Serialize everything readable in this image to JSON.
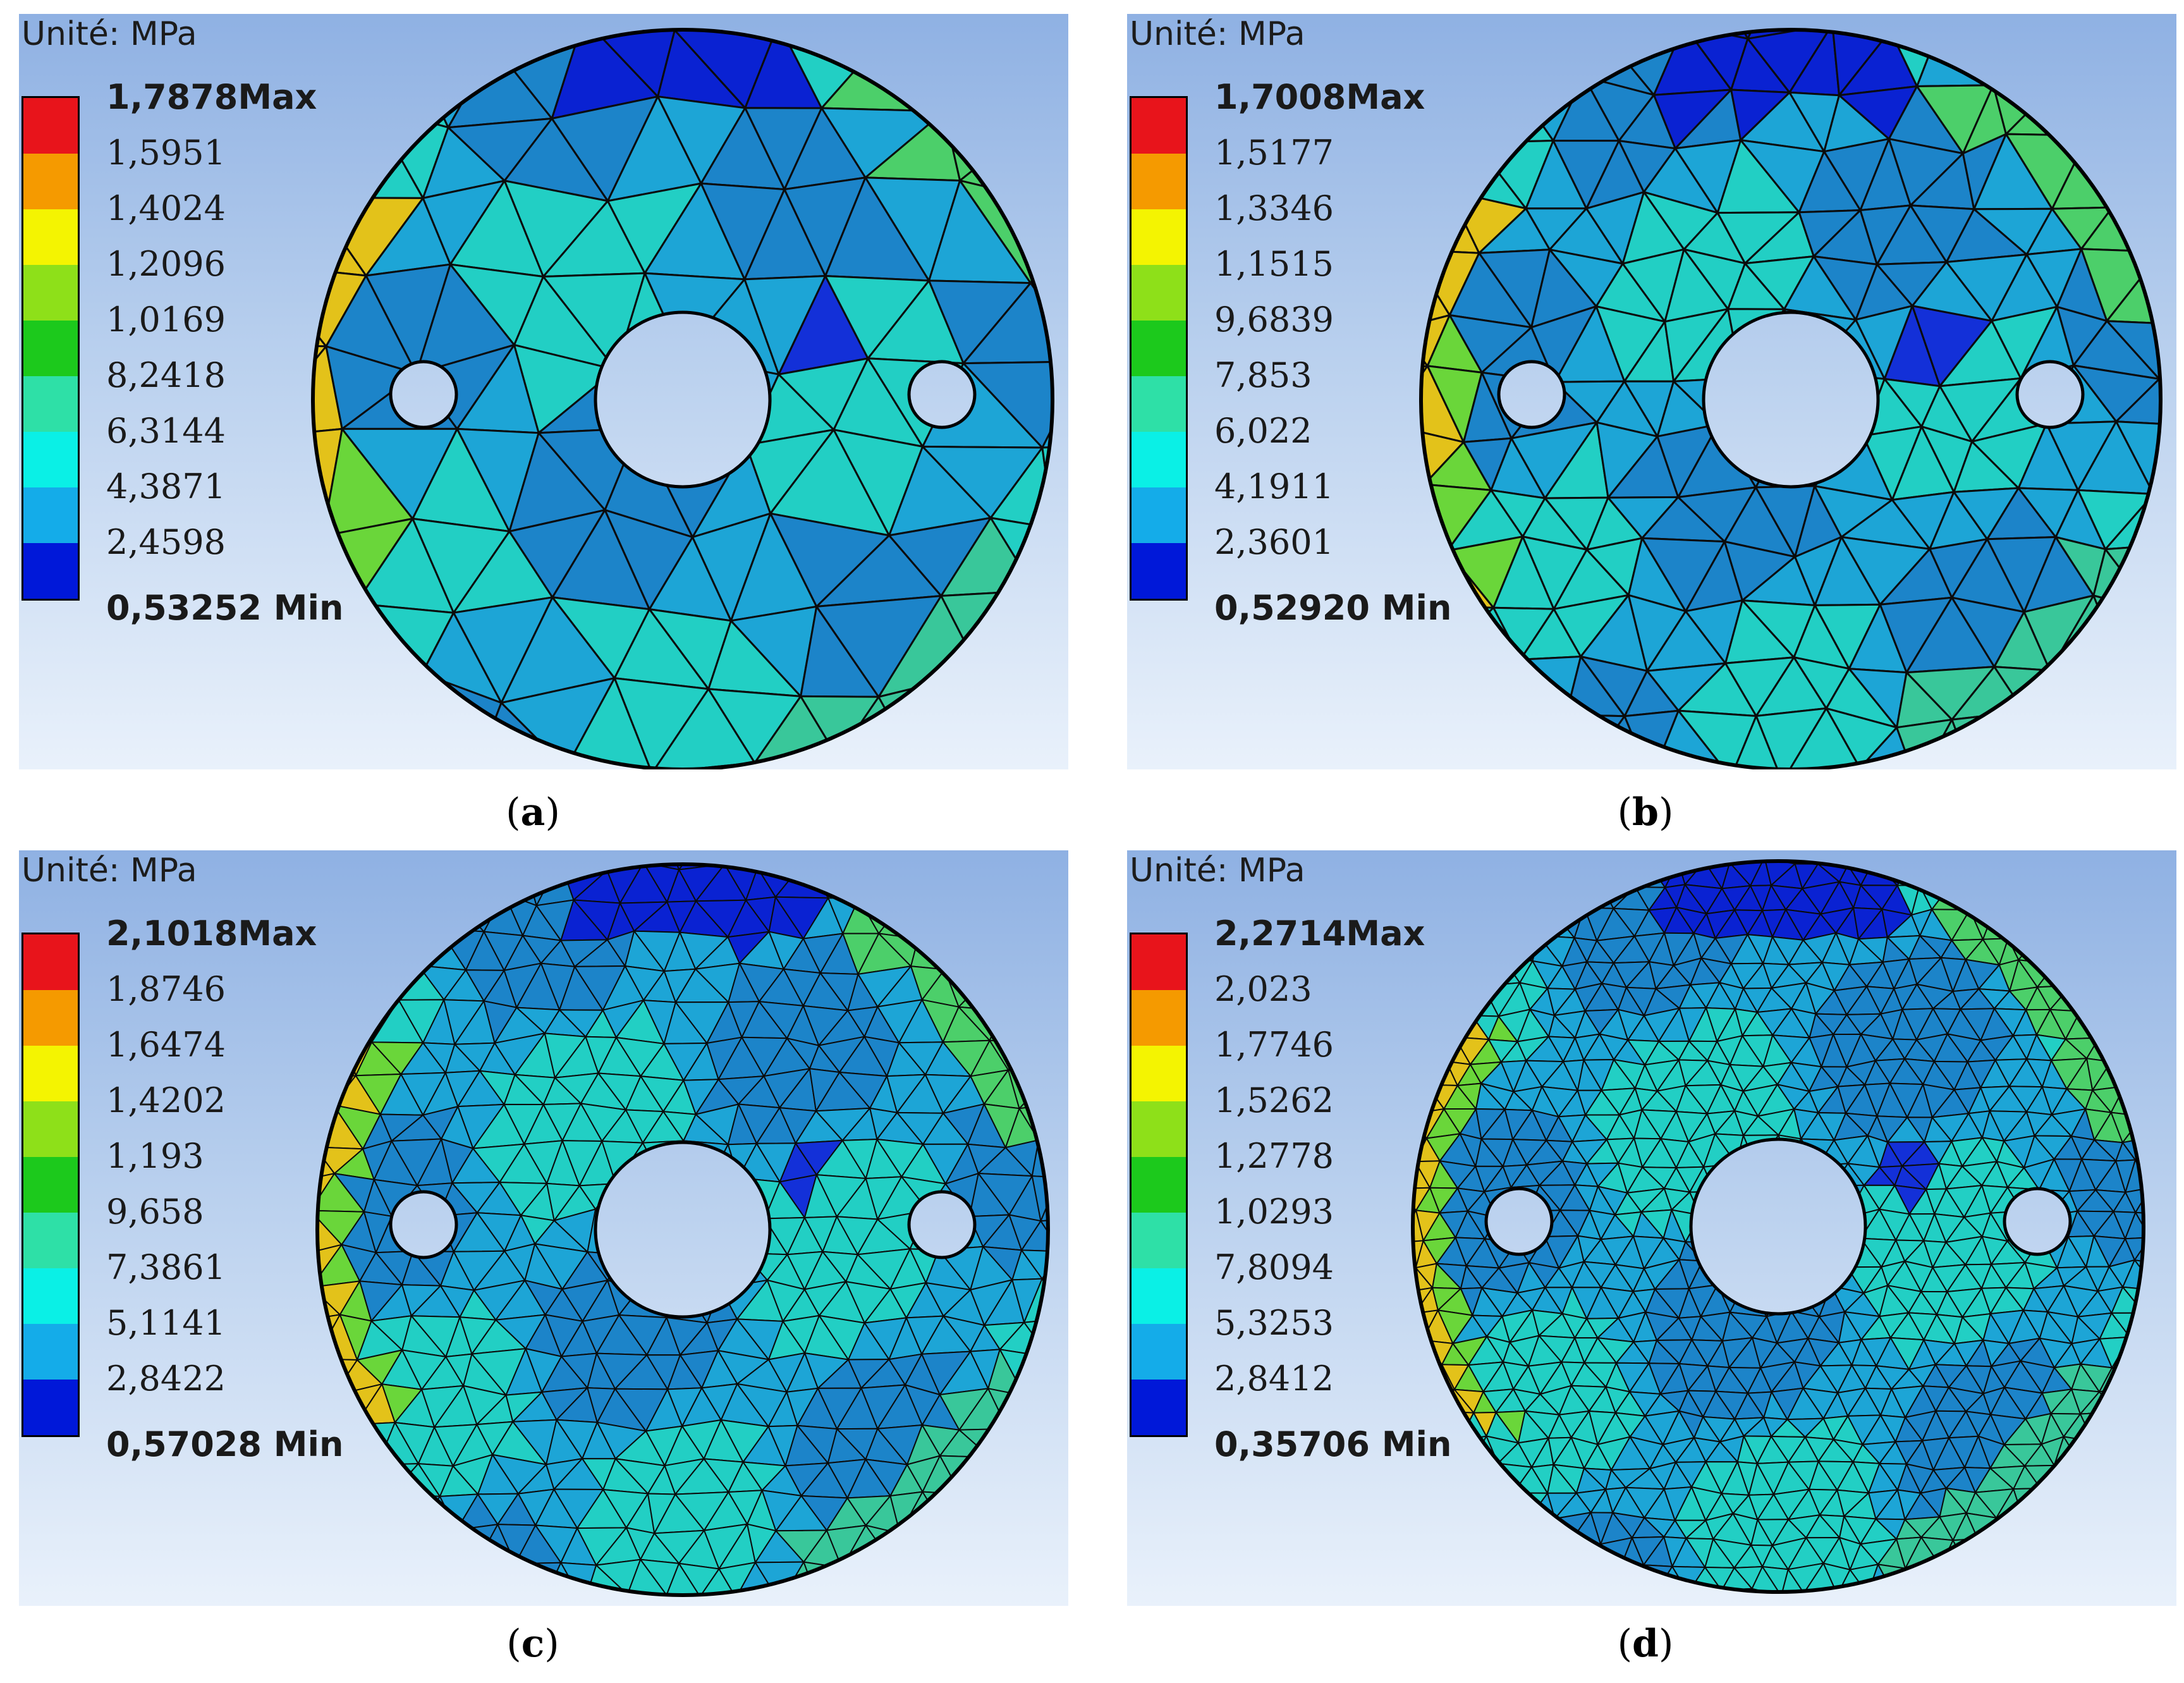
{
  "unit_label": "Unité: MPa",
  "legend_colors": [
    "#e8141b",
    "#f59a00",
    "#f4f401",
    "#8ee019",
    "#1cc91c",
    "#2ee0a7",
    "#0af0e6",
    "#14ace9",
    "#0018d9"
  ],
  "panels": [
    {
      "id": "a",
      "caption_letter": "a",
      "max": "1,7878Max",
      "values": [
        "1,5951",
        "1,4024",
        "1,2096",
        "1,0169",
        "8,2418",
        "6,3144",
        "4,3871",
        "2,4598"
      ],
      "min": "0,53252 Min"
    },
    {
      "id": "b",
      "caption_letter": "b",
      "max": "1,7008Max",
      "values": [
        "1,5177",
        "1,3346",
        "1,1515",
        "9,6839",
        "7,853",
        "6,022",
        "4,1911",
        "2,3601"
      ],
      "min": "0,52920 Min"
    },
    {
      "id": "c",
      "caption_letter": "c",
      "max": "2,1018Max",
      "values": [
        "1,8746",
        "1,6474",
        "1,4202",
        "1,193",
        "9,658",
        "7,3861",
        "5,1141",
        "2,8422"
      ],
      "min": "0,57028 Min"
    },
    {
      "id": "d",
      "caption_letter": "d",
      "max": "2,2714Max",
      "values": [
        "2,023",
        "1,7746",
        "1,5262",
        "1,2778",
        "1,0293",
        "7,8094",
        "5,3253",
        "2,8412"
      ],
      "min": "0,35706 Min"
    }
  ]
}
